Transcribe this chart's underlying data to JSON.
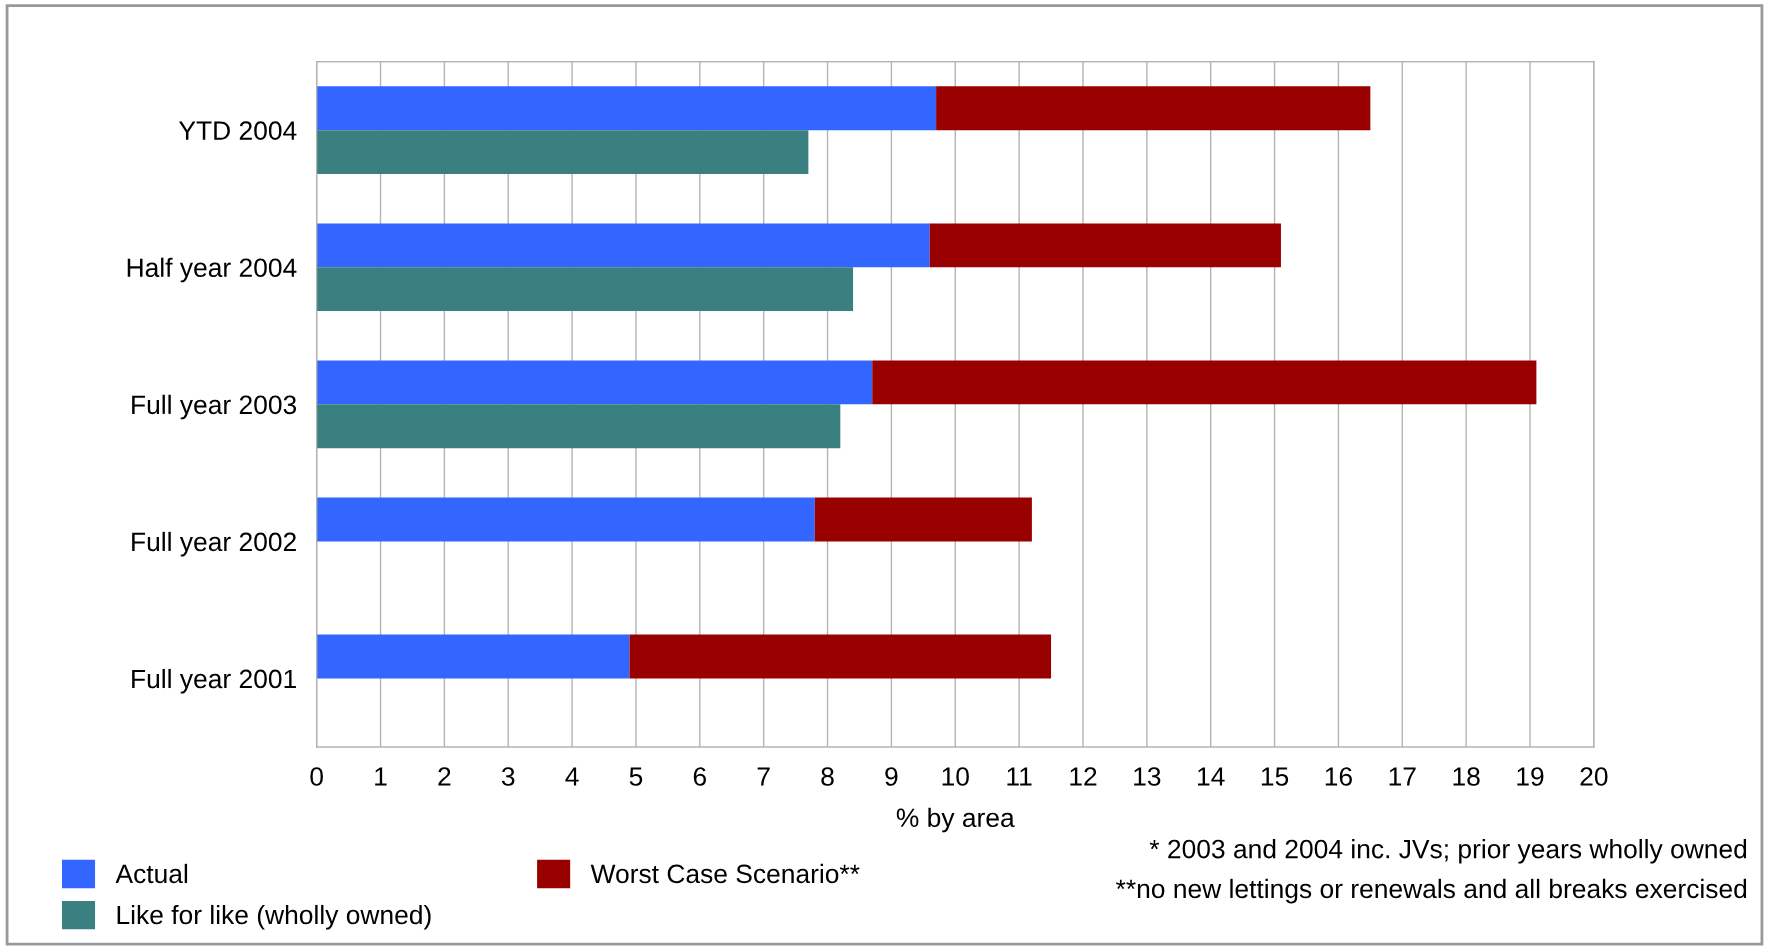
{
  "chart_data": [
    {
      "type": "bar",
      "orientation": "horizontal",
      "stacked": true,
      "categories": [
        "YTD 2004",
        "Half year 2004",
        "Full year 2003",
        "Full year 2002",
        "Full year 2001"
      ],
      "series": [
        {
          "name": "Actual",
          "color": "#3366ff",
          "values": [
            9.7,
            9.6,
            8.7,
            7.8,
            4.9
          ]
        },
        {
          "name": "Worst Case Scenario**",
          "color": "#990000",
          "values": [
            6.8,
            5.5,
            10.4,
            3.4,
            6.6
          ]
        }
      ],
      "xlim": [
        0,
        20
      ],
      "xticks": [
        0,
        1,
        2,
        3,
        4,
        5,
        6,
        7,
        8,
        9,
        10,
        11,
        12,
        13,
        14,
        15,
        16,
        17,
        18,
        19,
        20
      ],
      "xlabel": "% by area",
      "grid": "x",
      "legend": "bottom left",
      "annotations": [
        "* 2003 and 2004 inc. JVs; prior years wholly owned",
        "**no new lettings or renewals and all breaks exercised"
      ]
    },
    {
      "type": "bar",
      "orientation": "horizontal",
      "categories": [
        null,
        null,
        null,
        null,
        null
      ],
      "series": [
        {
          "name": "Like for like (wholly owned)",
          "color": "#3a8080",
          "values": [
            7.7,
            8.4,
            8.2,
            null,
            null
          ]
        }
      ],
      "xlim": [
        0,
        20
      ],
      "tick_labels": false,
      "legend": "bottom left"
    }
  ]
}
